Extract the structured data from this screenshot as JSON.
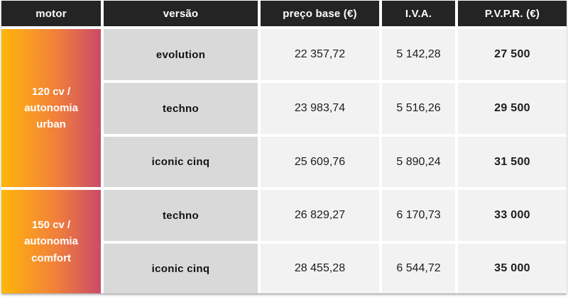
{
  "table": {
    "headers": [
      {
        "label": "motor"
      },
      {
        "label": "versão"
      },
      {
        "label": "preço base (€)"
      },
      {
        "label": "I.V.A."
      },
      {
        "label": "P.V.P.R. (€)"
      }
    ],
    "groups": [
      {
        "motor_label": "120 cv /\nautonomia\nurban",
        "rows": [
          {
            "versao": "evolution",
            "preco_base": "22 357,72",
            "iva": "5 142,28",
            "pvpr": "27 500"
          },
          {
            "versao": "techno",
            "preco_base": "23 983,74",
            "iva": "5 516,26",
            "pvpr": "29 500"
          },
          {
            "versao": "iconic cinq",
            "preco_base": "25 609,76",
            "iva": "5 890,24",
            "pvpr": "31 500"
          }
        ]
      },
      {
        "motor_label": "150 cv /\nautonomia\ncomfort",
        "rows": [
          {
            "versao": "techno",
            "preco_base": "26 829,27",
            "iva": "6 170,73",
            "pvpr": "33 000"
          },
          {
            "versao": "iconic cinq",
            "preco_base": "28 455,28",
            "iva": "6 544,72",
            "pvpr": "35 000"
          }
        ]
      }
    ],
    "colors": {
      "header_bg": "#242424",
      "header_text": "#ffffff",
      "versao_bg": "#d9d9d9",
      "value_bg": "#f2f2f2",
      "gradient_start": "#ffb60a",
      "gradient_mid": "#f1803b",
      "gradient_end": "#c94b68",
      "motor_text": "#ffffff"
    }
  }
}
